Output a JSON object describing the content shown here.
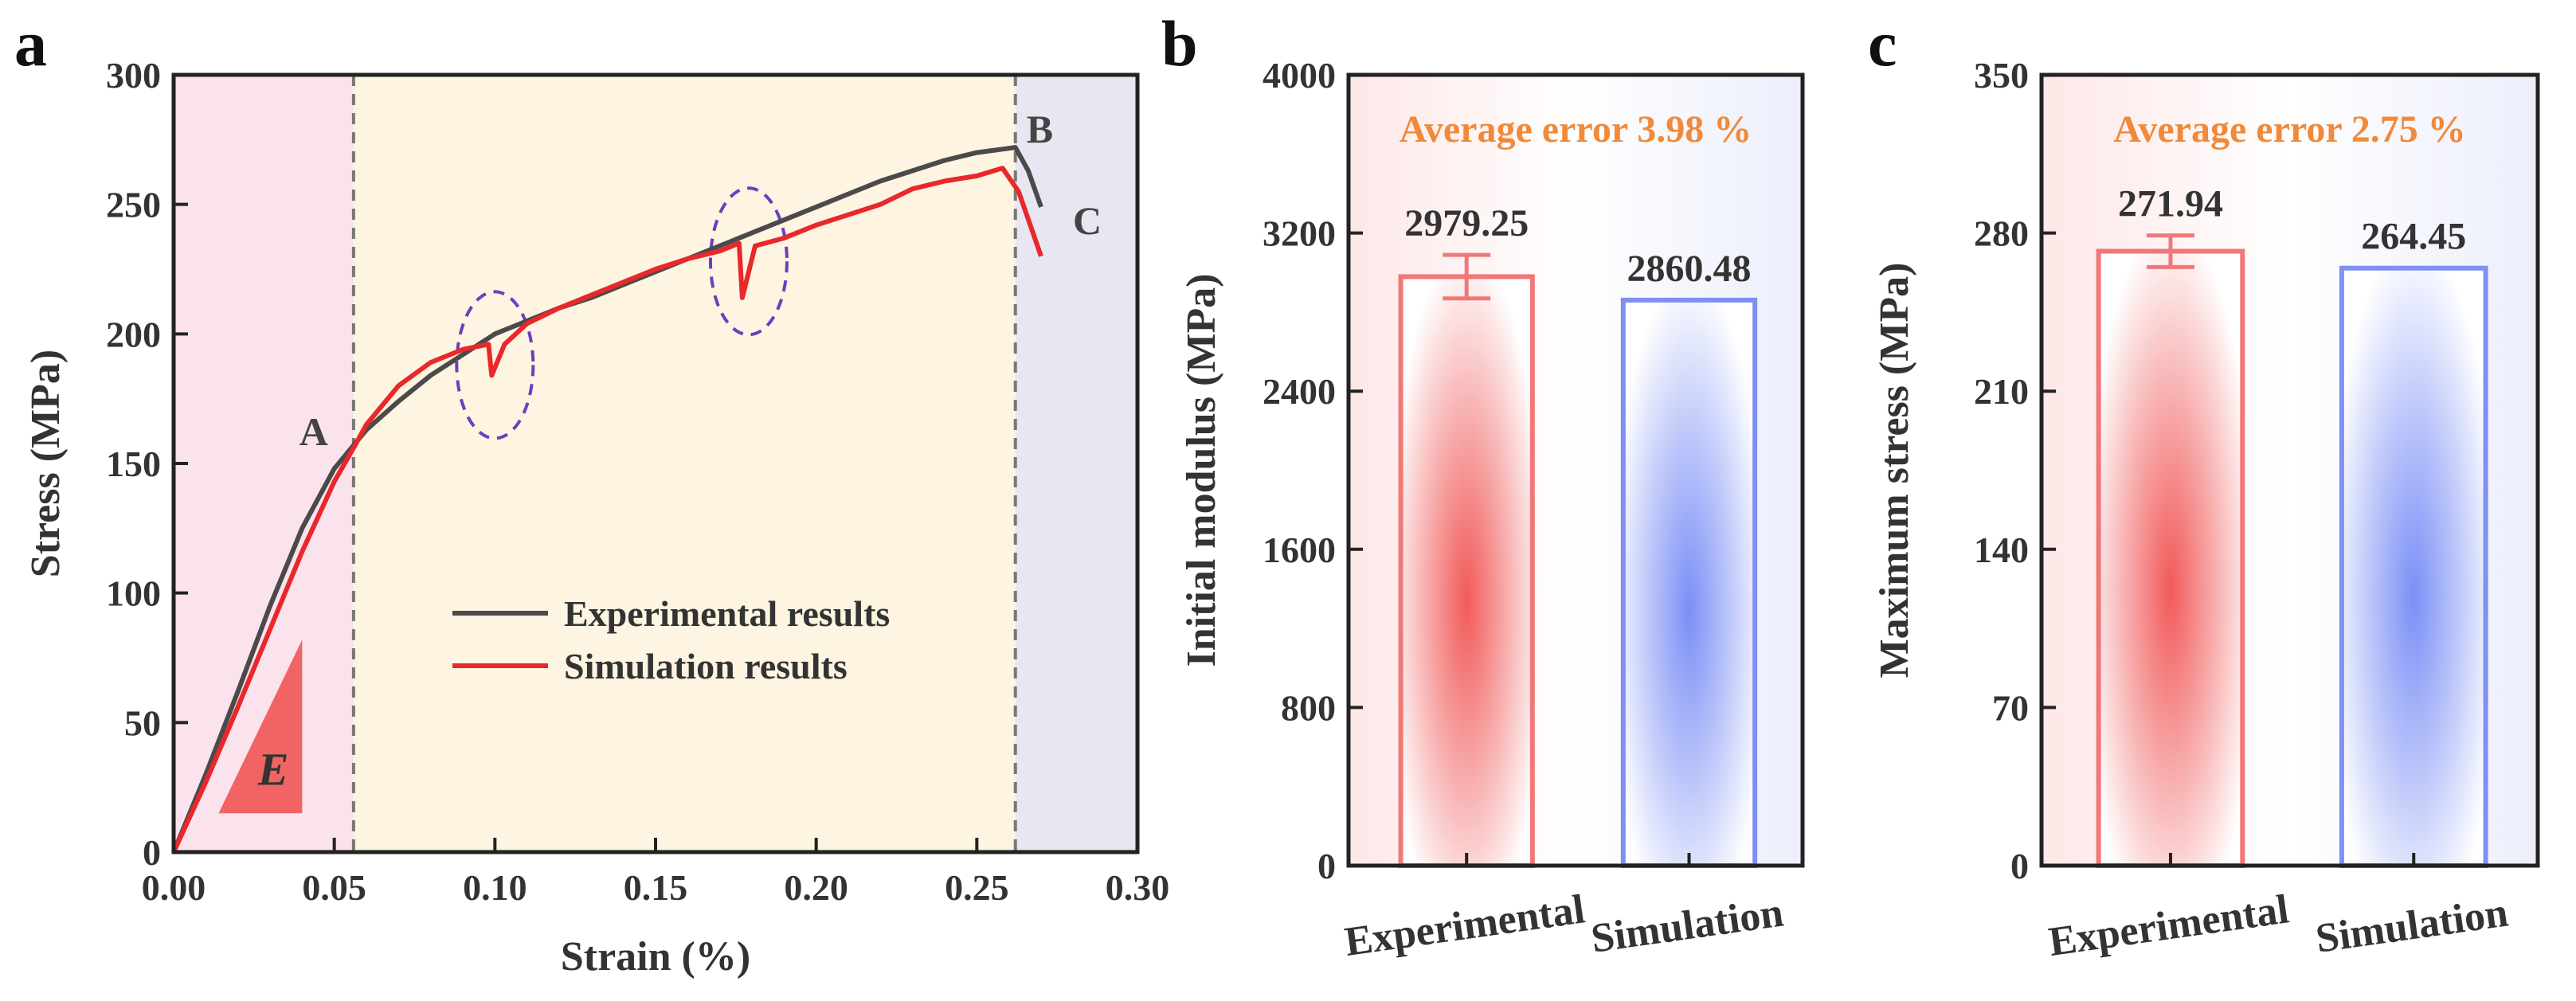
{
  "panel_labels": [
    "a",
    "b",
    "c"
  ],
  "chart_data": [
    {
      "type": "line",
      "panel": "a",
      "xlabel": "Strain (%)",
      "ylabel": "Stress (MPa)",
      "xlim": [
        0,
        0.3
      ],
      "ylim": [
        0,
        300
      ],
      "xticks": [
        "0.00",
        "0.05",
        "0.10",
        "0.15",
        "0.20",
        "0.25",
        "0.30"
      ],
      "yticks": [
        "0",
        "50",
        "100",
        "150",
        "200",
        "250",
        "300"
      ],
      "regions": [
        {
          "from": 0,
          "to": 0.056,
          "color": "#fbe3ee"
        },
        {
          "from": 0.056,
          "to": 0.262,
          "color": "#fdf4e1"
        },
        {
          "from": 0.262,
          "to": 0.3,
          "color": "#e8e6f1"
        }
      ],
      "vlines": [
        0.056,
        0.262
      ],
      "point_labels": [
        {
          "text": "A",
          "x": 0.056,
          "y": 157
        },
        {
          "text": "B",
          "x": 0.262,
          "y": 272
        },
        {
          "text": "C",
          "x": 0.27,
          "y": 249
        }
      ],
      "series": [
        {
          "name": "Experimental results",
          "color": "#4a4a4a",
          "x": [
            0,
            0.01,
            0.02,
            0.03,
            0.04,
            0.05,
            0.056,
            0.06,
            0.07,
            0.08,
            0.09,
            0.1,
            0.11,
            0.12,
            0.13,
            0.14,
            0.15,
            0.16,
            0.17,
            0.18,
            0.19,
            0.2,
            0.21,
            0.22,
            0.23,
            0.24,
            0.25,
            0.262,
            0.266,
            0.27
          ],
          "y": [
            0,
            30,
            62,
            95,
            125,
            148,
            157,
            163,
            174,
            184,
            192,
            200,
            205,
            210,
            214,
            219,
            224,
            229,
            234,
            239,
            244,
            249,
            254,
            259,
            263,
            267,
            270,
            272,
            263,
            249
          ]
        },
        {
          "name": "Simulation results",
          "color": "#e8282a",
          "x": [
            0,
            0.01,
            0.02,
            0.03,
            0.04,
            0.05,
            0.056,
            0.06,
            0.07,
            0.08,
            0.09,
            0.098,
            0.099,
            0.103,
            0.11,
            0.12,
            0.13,
            0.14,
            0.15,
            0.16,
            0.17,
            0.176,
            0.177,
            0.181,
            0.19,
            0.2,
            0.21,
            0.22,
            0.23,
            0.24,
            0.25,
            0.258,
            0.263,
            0.27
          ],
          "y": [
            0,
            27,
            56,
            86,
            116,
            143,
            156,
            165,
            180,
            189,
            194,
            196,
            184,
            196,
            204,
            210,
            215,
            220,
            225,
            229,
            232,
            235,
            214,
            234,
            237,
            242,
            246,
            250,
            256,
            259,
            261,
            264,
            255,
            230
          ]
        }
      ],
      "annotation": "E"
    },
    {
      "type": "bar",
      "panel": "b",
      "ylabel": "Initial modulus (MPa)",
      "ylim": [
        0,
        4000
      ],
      "yticks": [
        "0",
        "800",
        "1600",
        "2400",
        "3200",
        "4000"
      ],
      "categories": [
        "Experimental",
        "Simulation"
      ],
      "values": [
        2979.25,
        2860.48
      ],
      "value_labels": [
        "2979.25",
        "2860.48"
      ],
      "error": [
        110,
        0
      ],
      "colors": [
        "#f07878",
        "#7f90f2"
      ],
      "title": "Average error 3.98 %"
    },
    {
      "type": "bar",
      "panel": "c",
      "ylabel": "Maximum stress (MPa)",
      "ylim": [
        0,
        350
      ],
      "yticks": [
        "0",
        "70",
        "140",
        "210",
        "280",
        "350"
      ],
      "categories": [
        "Experimental",
        "Simulation"
      ],
      "values": [
        271.94,
        264.45
      ],
      "value_labels": [
        "271.94",
        "264.45"
      ],
      "error": [
        7,
        0
      ],
      "colors": [
        "#f07878",
        "#7f90f2"
      ],
      "title": "Average error 2.75 %"
    }
  ]
}
